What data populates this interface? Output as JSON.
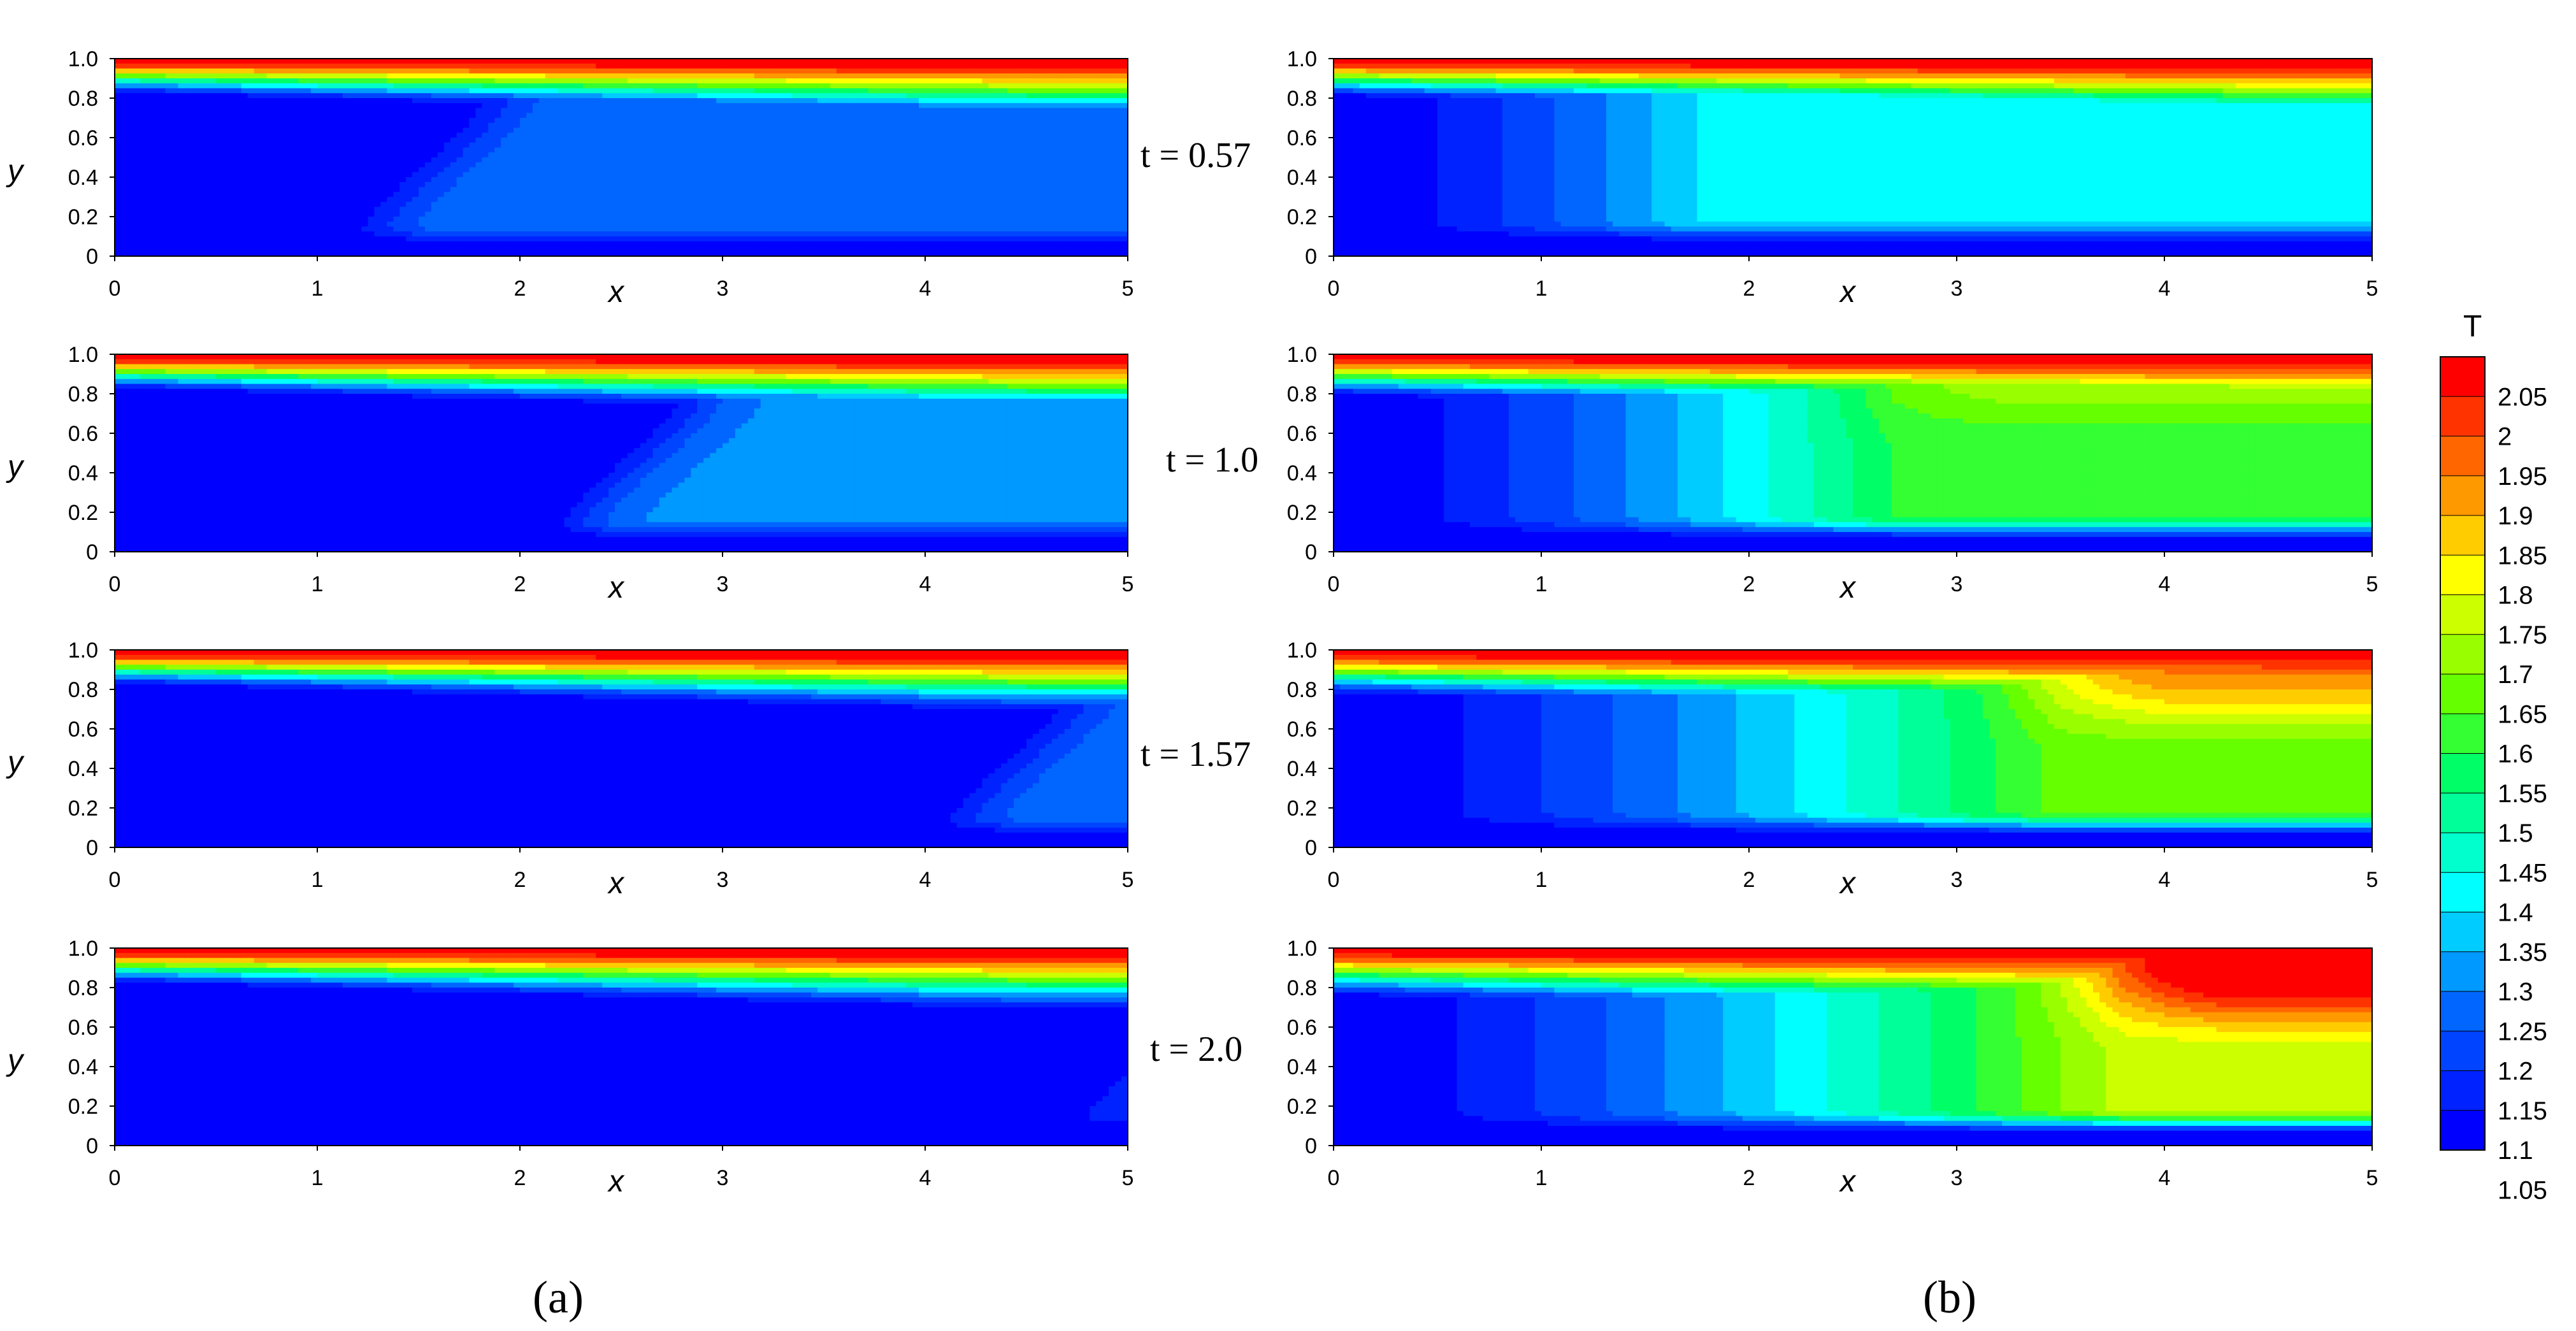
{
  "figure": {
    "colorbar": {
      "title": "T",
      "levels": [
        "2.05",
        "2",
        "1.95",
        "1.9",
        "1.85",
        "1.8",
        "1.75",
        "1.7",
        "1.65",
        "1.6",
        "1.55",
        "1.5",
        "1.45",
        "1.4",
        "1.35",
        "1.3",
        "1.25",
        "1.2",
        "1.15",
        "1.1",
        "1.05"
      ],
      "colors": [
        "#ff0000",
        "#ff3300",
        "#ff6600",
        "#ff9900",
        "#ffcc00",
        "#ffff00",
        "#ccff00",
        "#99ff00",
        "#66ff00",
        "#33ff33",
        "#00ff66",
        "#00ff99",
        "#00ffcc",
        "#00ffff",
        "#00ccff",
        "#0099ff",
        "#0066ff",
        "#0044ff",
        "#0022ff",
        "#0000ff"
      ]
    },
    "panel_labels": [
      "(a)",
      "(b)"
    ],
    "time_labels": [
      "t = 0.57",
      "t = 1.0",
      "t = 1.57",
      "t = 2.0"
    ]
  },
  "chart_data": {
    "type": "heatmap",
    "xlabel": "x",
    "ylabel": "y",
    "xlim": [
      0,
      5
    ],
    "ylim": [
      0,
      1.0
    ],
    "xticks": [
      "0",
      "1",
      "2",
      "3",
      "4",
      "5"
    ],
    "yticks": [
      "0",
      "0.2",
      "0.4",
      "0.6",
      "0.8",
      "1.0"
    ],
    "value_label": "T",
    "value_range": [
      1.05,
      2.05
    ],
    "columns": [
      {
        "panel": "(a)",
        "rows": [
          {
            "t": 0.57,
            "front": 1.55,
            "top_layer": 0.22,
            "base": 1.05,
            "plateau": 1.22,
            "hot": 0.0
          },
          {
            "t": 1.0,
            "front": 2.55,
            "top_layer": 0.22,
            "base": 1.05,
            "plateau": 1.25,
            "hot": 0.0
          },
          {
            "t": 1.57,
            "front": 4.45,
            "top_layer": 0.22,
            "base": 1.05,
            "plateau": 1.22,
            "hot": 0.0
          },
          {
            "t": 2.0,
            "front": 4.95,
            "top_layer": 0.22,
            "base": 1.05,
            "plateau": 1.12,
            "hot": 0.0
          }
        ]
      },
      {
        "panel": "(b)",
        "rows": [
          {
            "t": 0.57,
            "front": 1.15,
            "top_layer": 0.24,
            "base": 1.05,
            "plateau": 1.35,
            "hot": 0.0
          },
          {
            "t": 1.0,
            "front": 2.1,
            "top_layer": 0.26,
            "base": 1.05,
            "plateau": 1.55,
            "hot": 0.15
          },
          {
            "t": 1.57,
            "front": 2.9,
            "top_layer": 0.28,
            "base": 1.05,
            "plateau": 1.62,
            "hot": 0.3
          },
          {
            "t": 2.0,
            "front": 3.2,
            "top_layer": 0.3,
            "base": 1.05,
            "plateau": 1.72,
            "hot": 0.45
          }
        ]
      }
    ]
  }
}
